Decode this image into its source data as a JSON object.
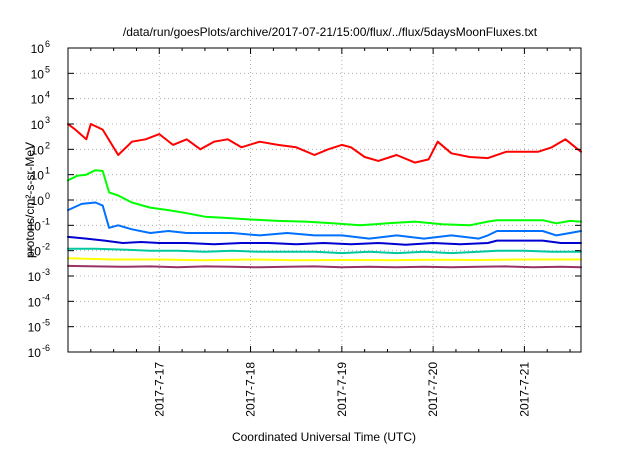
{
  "chart_data": {
    "type": "line",
    "title": "/data/run/goesPlots/archive/2017-07-21/15:00/flux/../flux/5daysMoonFluxes.txt",
    "xlabel": "Coordinated Universal Time (UTC)",
    "ylabel": "protons/cm²-s-sr-MeV",
    "y_scale": "log",
    "ylim": [
      1e-06,
      1000000.0
    ],
    "xlim_days": [
      "2017-07-16 00:00",
      "2017-07-21 15:00"
    ],
    "grid": true,
    "legend": "none",
    "x_ticks": [
      {
        "label": "2017-7-17",
        "day": 17
      },
      {
        "label": "2017-7-18",
        "day": 18
      },
      {
        "label": "2017-7-19",
        "day": 19
      },
      {
        "label": "2017-7-20",
        "day": 20
      },
      {
        "label": "2017-7-21",
        "day": 21
      }
    ],
    "y_ticks": [
      {
        "base": "10",
        "exp": "-6",
        "value": -6
      },
      {
        "base": "10",
        "exp": "-5",
        "value": -5
      },
      {
        "base": "10",
        "exp": "-4",
        "value": -4
      },
      {
        "base": "10",
        "exp": "-3",
        "value": -3
      },
      {
        "base": "10",
        "exp": "-2",
        "value": -2
      },
      {
        "base": "10",
        "exp": "-1",
        "value": -1
      },
      {
        "base": "10",
        "exp": "0",
        "value": 0
      },
      {
        "base": "10",
        "exp": "1",
        "value": 1
      },
      {
        "base": "10",
        "exp": "2",
        "value": 2
      },
      {
        "base": "10",
        "exp": "3",
        "value": 3
      },
      {
        "base": "10",
        "exp": "4",
        "value": 4
      },
      {
        "base": "10",
        "exp": "5",
        "value": 5
      },
      {
        "base": "10",
        "exp": "6",
        "value": 6
      }
    ],
    "series": [
      {
        "color": "#ff0000",
        "x": [
          16.0,
          16.08,
          16.2,
          16.25,
          16.38,
          16.55,
          16.7,
          16.85,
          17.0,
          17.15,
          17.3,
          17.45,
          17.6,
          17.75,
          17.9,
          18.1,
          18.3,
          18.5,
          18.7,
          18.85,
          19.0,
          19.1,
          19.25,
          19.4,
          19.6,
          19.8,
          19.95,
          20.05,
          20.2,
          20.4,
          20.6,
          20.8,
          21.0,
          21.15,
          21.3,
          21.45,
          21.62
        ],
        "y": [
          1000,
          600,
          250,
          1000,
          600,
          60,
          200,
          250,
          400,
          150,
          250,
          100,
          200,
          250,
          120,
          200,
          150,
          120,
          60,
          100,
          150,
          120,
          50,
          35,
          60,
          30,
          40,
          200,
          70,
          50,
          45,
          80,
          80,
          80,
          120,
          250,
          80
        ]
      },
      {
        "color": "#00ff00",
        "x": [
          16.0,
          16.1,
          16.2,
          16.3,
          16.38,
          16.45,
          16.55,
          16.7,
          16.9,
          17.1,
          17.3,
          17.5,
          17.7,
          18.0,
          18.3,
          18.6,
          18.9,
          19.2,
          19.5,
          19.8,
          20.1,
          20.4,
          20.6,
          20.7,
          21.0,
          21.2,
          21.35,
          21.5,
          21.62
        ],
        "y": [
          6,
          9,
          10,
          15,
          14,
          2,
          1.5,
          0.8,
          0.5,
          0.4,
          0.3,
          0.22,
          0.2,
          0.17,
          0.15,
          0.14,
          0.12,
          0.1,
          0.12,
          0.14,
          0.11,
          0.1,
          0.14,
          0.16,
          0.16,
          0.16,
          0.12,
          0.15,
          0.14
        ]
      },
      {
        "color": "#0070ff",
        "x": [
          16.0,
          16.15,
          16.3,
          16.38,
          16.45,
          16.55,
          16.7,
          16.9,
          17.1,
          17.3,
          17.5,
          17.8,
          18.1,
          18.4,
          18.7,
          19.0,
          19.3,
          19.6,
          19.9,
          20.2,
          20.5,
          20.6,
          20.7,
          21.0,
          21.2,
          21.35,
          21.5,
          21.62
        ],
        "y": [
          0.4,
          0.7,
          0.8,
          0.6,
          0.08,
          0.1,
          0.07,
          0.05,
          0.06,
          0.05,
          0.05,
          0.05,
          0.04,
          0.05,
          0.04,
          0.04,
          0.03,
          0.04,
          0.03,
          0.04,
          0.03,
          0.04,
          0.06,
          0.06,
          0.06,
          0.04,
          0.05,
          0.06
        ]
      },
      {
        "color": "#0000d0",
        "x": [
          16.0,
          16.2,
          16.4,
          16.6,
          16.8,
          17.0,
          17.3,
          17.6,
          17.9,
          18.2,
          18.5,
          18.8,
          19.1,
          19.4,
          19.7,
          20.0,
          20.3,
          20.6,
          20.7,
          21.0,
          21.2,
          21.4,
          21.62
        ],
        "y": [
          0.035,
          0.03,
          0.025,
          0.02,
          0.022,
          0.02,
          0.02,
          0.018,
          0.02,
          0.02,
          0.018,
          0.02,
          0.018,
          0.02,
          0.017,
          0.02,
          0.018,
          0.02,
          0.025,
          0.025,
          0.025,
          0.02,
          0.02
        ]
      },
      {
        "color": "#00c8a0",
        "x": [
          16.0,
          16.3,
          16.6,
          16.9,
          17.2,
          17.5,
          17.8,
          18.1,
          18.4,
          18.7,
          19.0,
          19.3,
          19.6,
          19.9,
          20.2,
          20.5,
          20.7,
          21.0,
          21.3,
          21.62
        ],
        "y": [
          0.012,
          0.012,
          0.011,
          0.01,
          0.01,
          0.009,
          0.01,
          0.009,
          0.009,
          0.009,
          0.008,
          0.009,
          0.008,
          0.009,
          0.008,
          0.009,
          0.01,
          0.01,
          0.009,
          0.009
        ]
      },
      {
        "color": "#ffff00",
        "x": [
          16.0,
          16.5,
          17.0,
          17.5,
          18.0,
          18.5,
          19.0,
          19.5,
          20.0,
          20.5,
          21.0,
          21.62
        ],
        "y": [
          0.005,
          0.0045,
          0.0045,
          0.0042,
          0.0045,
          0.0042,
          0.0043,
          0.0042,
          0.0044,
          0.0043,
          0.0045,
          0.0045
        ]
      },
      {
        "color": "#993366",
        "x": [
          16.0,
          16.3,
          16.6,
          16.9,
          17.2,
          17.5,
          17.8,
          18.1,
          18.4,
          18.7,
          19.0,
          19.3,
          19.6,
          19.9,
          20.2,
          20.5,
          20.8,
          21.1,
          21.4,
          21.62
        ],
        "y": [
          0.0025,
          0.0024,
          0.0023,
          0.0024,
          0.0022,
          0.0024,
          0.0023,
          0.0022,
          0.0023,
          0.0024,
          0.0022,
          0.0023,
          0.0022,
          0.0023,
          0.0022,
          0.0023,
          0.0024,
          0.0022,
          0.0023,
          0.0022
        ]
      }
    ]
  }
}
